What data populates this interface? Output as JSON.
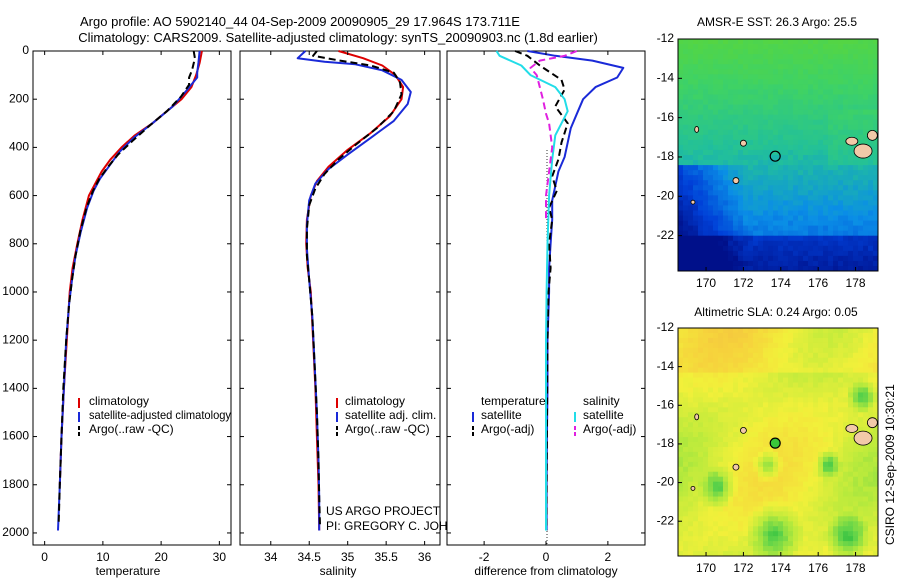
{
  "title": {
    "line1": "Argo profile: AO 5902140_44 04-Sep-2009 20090905_29 17.964S 173.711E",
    "line2": "Climatology: CARS2009. Satellite-adjusted climatology: synTS_20090903.nc (1.8d earlier)"
  },
  "credits": {
    "project": "US ARGO PROJECT",
    "pi": "PI: GREGORY C. JOHNSON",
    "stamp": "CSIRO 12-Sep-2009 10:30:21"
  },
  "colors": {
    "climatology": "#dd0000",
    "satellite": "#1a2ad8",
    "argo": "#000000",
    "salinity_satellite": "#22dde8",
    "salinity_argo": "#e020e0"
  },
  "chart_data": [
    {
      "id": "temperature",
      "type": "line",
      "xlabel": "temperature",
      "ylabel": "",
      "xlim": [
        -2,
        32
      ],
      "ylim": [
        2050,
        0
      ],
      "xticks": [
        0,
        10,
        20,
        30
      ],
      "yticks": [
        0,
        200,
        400,
        600,
        800,
        1000,
        1200,
        1400,
        1600,
        1800,
        2000
      ],
      "legend": [
        "climatology",
        "satellite-adjusted climatology",
        "Argo(..raw -QC)"
      ],
      "series": [
        {
          "name": "climatology",
          "color": "#dd0000",
          "style": "solid",
          "points": [
            [
              27.0,
              0
            ],
            [
              26.6,
              50
            ],
            [
              26.0,
              100
            ],
            [
              25.2,
              150
            ],
            [
              23.5,
              200
            ],
            [
              21.0,
              250
            ],
            [
              18.5,
              300
            ],
            [
              15.5,
              350
            ],
            [
              13.2,
              400
            ],
            [
              11.3,
              450
            ],
            [
              9.8,
              500
            ],
            [
              8.7,
              550
            ],
            [
              7.6,
              600
            ],
            [
              6.5,
              700
            ],
            [
              5.6,
              800
            ],
            [
              4.8,
              900
            ],
            [
              4.3,
              1000
            ],
            [
              3.8,
              1200
            ],
            [
              3.3,
              1400
            ],
            [
              2.9,
              1600
            ],
            [
              2.6,
              1800
            ]
          ]
        },
        {
          "name": "satellite-adjusted climatology",
          "color": "#1a2ad8",
          "style": "solid",
          "points": [
            [
              26.6,
              0
            ],
            [
              26.4,
              50
            ],
            [
              26.2,
              90
            ],
            [
              26.2,
              110
            ],
            [
              24.5,
              160
            ],
            [
              22.0,
              230
            ],
            [
              18.5,
              300
            ],
            [
              15.3,
              360
            ],
            [
              12.8,
              420
            ],
            [
              11.0,
              480
            ],
            [
              9.5,
              530
            ],
            [
              8.4,
              580
            ],
            [
              7.3,
              650
            ],
            [
              6.2,
              750
            ],
            [
              5.3,
              850
            ],
            [
              4.7,
              950
            ],
            [
              4.2,
              1050
            ],
            [
              3.7,
              1200
            ],
            [
              3.3,
              1400
            ],
            [
              2.9,
              1600
            ],
            [
              2.6,
              1800
            ],
            [
              2.3,
              1990
            ]
          ]
        },
        {
          "name": "Argo(..raw -QC)",
          "color": "#000000",
          "style": "dash",
          "points": [
            [
              25.6,
              0
            ],
            [
              25.8,
              30
            ],
            [
              25.3,
              80
            ],
            [
              24.8,
              110
            ],
            [
              24.8,
              140
            ],
            [
              23.4,
              190
            ],
            [
              21.0,
              250
            ],
            [
              18.0,
              310
            ],
            [
              15.2,
              370
            ],
            [
              12.6,
              430
            ],
            [
              10.9,
              480
            ],
            [
              9.4,
              530
            ],
            [
              8.3,
              580
            ],
            [
              7.2,
              650
            ],
            [
              6.1,
              750
            ],
            [
              5.3,
              850
            ],
            [
              4.7,
              950
            ],
            [
              4.2,
              1050
            ],
            [
              3.7,
              1200
            ],
            [
              3.2,
              1400
            ],
            [
              2.9,
              1600
            ],
            [
              2.6,
              1800
            ],
            [
              2.4,
              1970
            ]
          ]
        }
      ]
    },
    {
      "id": "salinity",
      "type": "line",
      "xlabel": "salinity",
      "ylabel": "",
      "xlim": [
        33.6,
        36.2
      ],
      "ylim": [
        2050,
        0
      ],
      "xticks": [
        34,
        34.5,
        35,
        35.5,
        36
      ],
      "xtick_labels": [
        "34",
        "34.5",
        "35",
        "35.5",
        "36"
      ],
      "yticks": [
        0,
        200,
        400,
        600,
        800,
        1000,
        1200,
        1400,
        1600,
        1800,
        2000
      ],
      "legend": [
        "climatology",
        "satellite adj. clim.",
        "Argo(..raw -QC)"
      ],
      "series": [
        {
          "name": "climatology",
          "color": "#dd0000",
          "style": "solid",
          "points": [
            [
              34.88,
              0
            ],
            [
              35.2,
              30
            ],
            [
              35.45,
              60
            ],
            [
              35.62,
              100
            ],
            [
              35.72,
              150
            ],
            [
              35.7,
              200
            ],
            [
              35.55,
              270
            ],
            [
              35.3,
              340
            ],
            [
              35.0,
              410
            ],
            [
              34.75,
              480
            ],
            [
              34.6,
              540
            ],
            [
              34.52,
              600
            ],
            [
              34.47,
              700
            ],
            [
              34.46,
              800
            ],
            [
              34.48,
              900
            ],
            [
              34.52,
              1000
            ],
            [
              34.55,
              1200
            ],
            [
              34.58,
              1400
            ],
            [
              34.6,
              1600
            ],
            [
              34.62,
              1800
            ],
            [
              34.63,
              1990
            ]
          ]
        },
        {
          "name": "satellite adj. clim.",
          "color": "#1a2ad8",
          "style": "solid",
          "points": [
            [
              34.45,
              0
            ],
            [
              34.35,
              30
            ],
            [
              34.7,
              45
            ],
            [
              35.1,
              55
            ],
            [
              35.45,
              80
            ],
            [
              35.7,
              120
            ],
            [
              35.82,
              170
            ],
            [
              35.78,
              220
            ],
            [
              35.6,
              290
            ],
            [
              35.3,
              360
            ],
            [
              35.0,
              430
            ],
            [
              34.75,
              490
            ],
            [
              34.58,
              550
            ],
            [
              34.5,
              620
            ],
            [
              34.47,
              720
            ],
            [
              34.47,
              820
            ],
            [
              34.5,
              950
            ],
            [
              34.54,
              1100
            ],
            [
              34.57,
              1300
            ],
            [
              34.6,
              1500
            ],
            [
              34.62,
              1700
            ],
            [
              34.63,
              1850
            ],
            [
              34.63,
              1990
            ]
          ]
        },
        {
          "name": "Argo(..raw -QC)",
          "color": "#000000",
          "style": "dash",
          "points": [
            [
              34.6,
              0
            ],
            [
              34.55,
              20
            ],
            [
              34.9,
              40
            ],
            [
              35.3,
              60
            ],
            [
              35.6,
              90
            ],
            [
              35.68,
              130
            ],
            [
              35.7,
              180
            ],
            [
              35.6,
              250
            ],
            [
              35.38,
              320
            ],
            [
              35.1,
              390
            ],
            [
              34.88,
              450
            ],
            [
              34.7,
              510
            ],
            [
              34.58,
              570
            ],
            [
              34.5,
              640
            ],
            [
              34.47,
              740
            ],
            [
              34.47,
              850
            ],
            [
              34.5,
              950
            ],
            [
              34.54,
              1100
            ],
            [
              34.57,
              1300
            ],
            [
              34.6,
              1500
            ],
            [
              34.62,
              1700
            ],
            [
              34.63,
              1850
            ],
            [
              34.64,
              1970
            ]
          ]
        }
      ]
    },
    {
      "id": "difference",
      "type": "line",
      "xlabel": "difference from climatology",
      "ylabel": "",
      "xlim": [
        -3.2,
        3.2
      ],
      "ylim": [
        2050,
        0
      ],
      "xticks": [
        -2,
        0,
        2
      ],
      "yticks": [
        0,
        200,
        400,
        600,
        800,
        1000,
        1200,
        1400,
        1600,
        1800,
        2000
      ],
      "legend_titles": [
        "temperature",
        "salinity"
      ],
      "legend": [
        "satellite",
        "Argo(-adj)",
        "satellite",
        "Argo(-adj)"
      ],
      "series": [
        {
          "name": "temperature satellite",
          "color": "#1a2ad8",
          "style": "solid",
          "points": [
            [
              -0.6,
              0
            ],
            [
              0.3,
              20
            ],
            [
              1.5,
              40
            ],
            [
              2.5,
              70
            ],
            [
              2.3,
              110
            ],
            [
              1.6,
              150
            ],
            [
              1.2,
              200
            ],
            [
              1.0,
              260
            ],
            [
              0.8,
              320
            ],
            [
              0.7,
              380
            ],
            [
              0.6,
              440
            ],
            [
              0.4,
              500
            ],
            [
              0.3,
              560
            ],
            [
              0.2,
              620
            ],
            [
              0.2,
              700
            ],
            [
              0.15,
              800
            ],
            [
              0.1,
              900
            ],
            [
              0.1,
              1000
            ],
            [
              0.05,
              1200
            ],
            [
              0.05,
              1400
            ],
            [
              0.03,
              1600
            ],
            [
              0.02,
              1800
            ],
            [
              0.02,
              1990
            ]
          ]
        },
        {
          "name": "temperature Argo(-adj)",
          "color": "#000000",
          "style": "dash",
          "points": [
            [
              -1.0,
              0
            ],
            [
              -0.6,
              20
            ],
            [
              -0.2,
              60
            ],
            [
              0.5,
              120
            ],
            [
              0.6,
              160
            ],
            [
              0.3,
              230
            ],
            [
              0.7,
              300
            ],
            [
              0.5,
              380
            ],
            [
              0.4,
              450
            ],
            [
              0.2,
              520
            ],
            [
              0.35,
              580
            ],
            [
              0.1,
              650
            ],
            [
              0.2,
              700
            ],
            [
              0.1,
              800
            ],
            [
              0.15,
              900
            ],
            [
              0.08,
              1000
            ],
            [
              0.05,
              1200
            ],
            [
              0.04,
              1400
            ],
            [
              0.03,
              1600
            ],
            [
              0.02,
              1800
            ],
            [
              0.01,
              1990
            ]
          ]
        },
        {
          "name": "salinity satellite",
          "color": "#22dde8",
          "style": "solid",
          "points": [
            [
              -1.6,
              0
            ],
            [
              -1.5,
              20
            ],
            [
              -0.8,
              60
            ],
            [
              -0.5,
              100
            ],
            [
              0.3,
              150
            ],
            [
              0.6,
              200
            ],
            [
              0.7,
              250
            ],
            [
              0.5,
              300
            ],
            [
              0.3,
              350
            ],
            [
              0.2,
              450
            ],
            [
              0.1,
              600
            ],
            [
              0.05,
              800
            ],
            [
              0.02,
              1000
            ],
            [
              0.0,
              1200
            ],
            [
              0.0,
              1400
            ],
            [
              0.0,
              1600
            ],
            [
              0.0,
              1800
            ],
            [
              0.0,
              1990
            ]
          ]
        },
        {
          "name": "salinity Argo(-adj)",
          "color": "#e020e0",
          "style": "dash",
          "points": [
            [
              1.0,
              0
            ],
            [
              0.6,
              20
            ],
            [
              -0.2,
              40
            ],
            [
              -0.5,
              70
            ],
            [
              -0.3,
              100
            ],
            [
              -0.2,
              150
            ],
            [
              -0.1,
              200
            ],
            [
              0.0,
              260
            ],
            [
              0.1,
              300
            ],
            [
              0.2,
              400
            ],
            [
              0.1,
              500
            ],
            [
              0.0,
              600
            ],
            [
              0.0,
              700
            ]
          ]
        }
      ]
    },
    {
      "id": "sst-map",
      "type": "heatmap",
      "title": "AMSR-E SST: 26.3 Argo: 25.5",
      "xlim": [
        168.5,
        179.2
      ],
      "ylim": [
        -23.8,
        -12
      ],
      "xticks": [
        170,
        172,
        174,
        176,
        178
      ],
      "yticks": [
        -12,
        -14,
        -16,
        -18,
        -20,
        -22
      ],
      "argo_position": [
        173.7,
        -17.96
      ],
      "palette": [
        "#00108a",
        "#0040d8",
        "#0a8ee6",
        "#22c09a",
        "#3ed266",
        "#59d63c"
      ]
    },
    {
      "id": "sla-map",
      "type": "heatmap",
      "title": "Altimetric SLA: 0.24 Argo: 0.05",
      "xlim": [
        168.5,
        179.2
      ],
      "ylim": [
        -23.8,
        -12
      ],
      "xticks": [
        170,
        172,
        174,
        176,
        178
      ],
      "yticks": [
        -12,
        -14,
        -16,
        -18,
        -20,
        -22
      ],
      "argo_position": [
        173.7,
        -17.96
      ],
      "palette": [
        "#18b43a",
        "#5cd24a",
        "#b8ea3c",
        "#f2f03a",
        "#f6d23c",
        "#f2b445"
      ]
    }
  ]
}
